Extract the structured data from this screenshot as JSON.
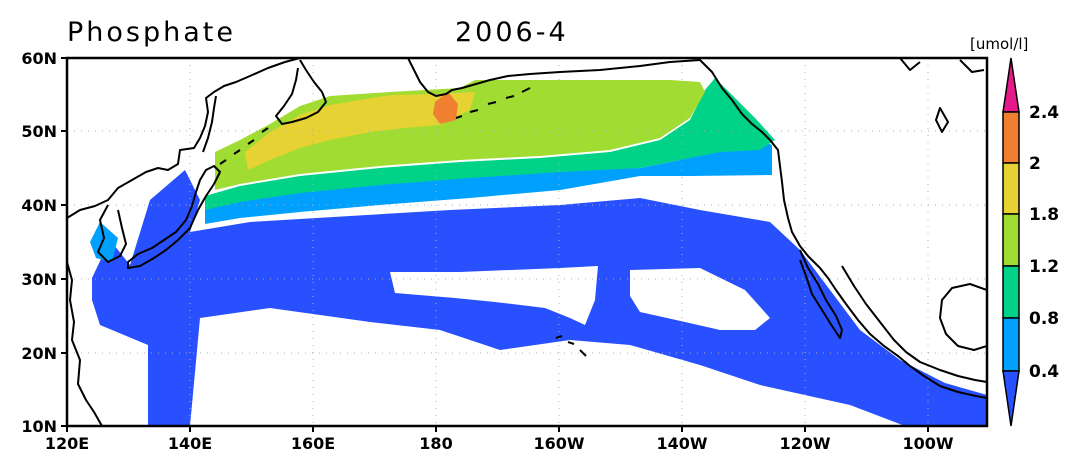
{
  "figure": {
    "title": "Phosphate",
    "period": "2006-4",
    "units": "[umol/l]"
  },
  "map": {
    "lon_labels": [
      "120E",
      "140E",
      "160E",
      "180",
      "160W",
      "140W",
      "120W",
      "100W"
    ],
    "lat_labels": [
      "60N",
      "50N",
      "40N",
      "30N",
      "20N",
      "10N"
    ]
  },
  "colorbar": {
    "levels": [
      "2.4",
      "2",
      "1.8",
      "1.2",
      "0.8",
      "0.4"
    ],
    "colors": {
      "above_2.4": "#e6198a",
      "2_to_2.4": "#f08030",
      "1.8_to_2": "#e6d232",
      "1.2_to_1.8": "#a0dc32",
      "0.8_to_1.2": "#00d287",
      "0.4_to_0.8": "#00a0ff",
      "below_0.4": "#2850ff"
    }
  },
  "colors": {
    "coastline": "#000000",
    "grid": "#b0b0b0",
    "background": "#ffffff"
  }
}
